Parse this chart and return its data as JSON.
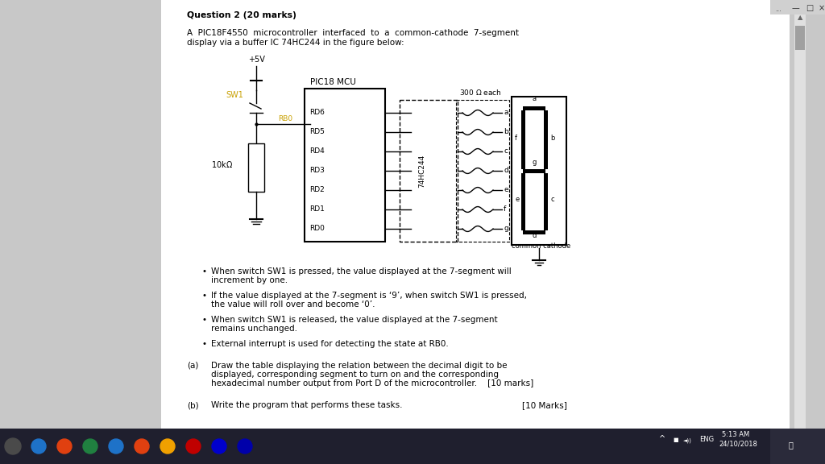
{
  "bg_color": "#c8c8c8",
  "page_bg": "#ffffff",
  "title": "Question 2 (20 marks)",
  "sw1_color": "#c8a000",
  "rb0_color": "#c8a000",
  "bullet1_line1": "When switch SW1 is pressed, the value displayed at the 7-segment will",
  "bullet1_line2": "increment by one.",
  "bullet2_line1": "If the value displayed at the 7-segment is ‘9’, when switch SW1 is pressed,",
  "bullet2_line2": "the value will roll over and become ‘0’.",
  "bullet3_line1": "When switch SW1 is released, the value displayed at the 7-segment",
  "bullet3_line2": "remains unchanged.",
  "bullet4_line1": "External interrupt is used for detecting the state at RB0.",
  "part_a_label": "(a)",
  "part_a_line1": "Draw the table displaying the relation between the decimal digit to be",
  "part_a_line2": "displayed, corresponding segment to turn on and the corresponding",
  "part_a_line3": "hexadecimal number output from Port D of the microcontroller.    [10 marks]",
  "part_b_label": "(b)",
  "part_b_text": "Write the program that performs these tasks.",
  "part_b_marks": "[10 Marks]"
}
